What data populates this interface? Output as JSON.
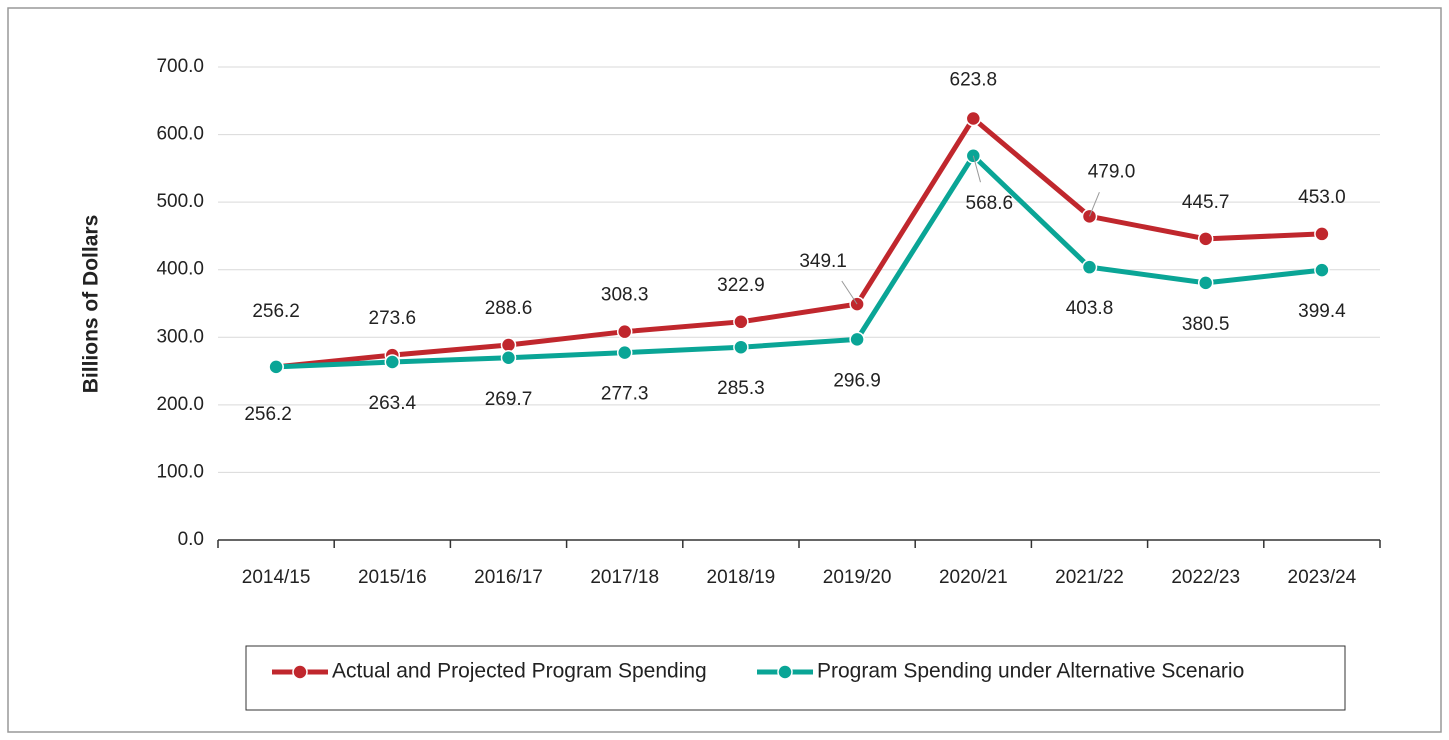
{
  "chart_data": {
    "type": "line",
    "y_label": "Billions of Dollars",
    "categories": [
      "2014/15",
      "2015/16",
      "2016/17",
      "2017/18",
      "2018/19",
      "2019/20",
      "2020/21",
      "2021/22",
      "2022/23",
      "2023/24"
    ],
    "series": [
      {
        "name": "Actual and Projected Program Spending",
        "color": "#c0272d",
        "values": [
          256.2,
          273.6,
          288.6,
          308.3,
          322.9,
          349.1,
          623.8,
          479.0,
          445.7,
          453.0
        ],
        "value_labels": [
          "256.2",
          "273.6",
          "288.6",
          "308.3",
          "322.9",
          "349.1",
          "623.8",
          "479.0",
          "445.7",
          "453.0"
        ]
      },
      {
        "name": "Program Spending under Alternative Scenario",
        "color": "#0aa596",
        "values": [
          256.2,
          263.4,
          269.7,
          277.3,
          285.3,
          296.9,
          568.6,
          403.8,
          380.5,
          399.4
        ],
        "value_labels": [
          "256.2",
          "263.4",
          "269.7",
          "277.3",
          "285.3",
          "296.9",
          "568.6",
          "403.8",
          "380.5",
          "399.4"
        ]
      }
    ],
    "ylim": [
      0,
      700
    ],
    "yticks": [
      {
        "value": 0,
        "label": "0.0"
      },
      {
        "value": 100,
        "label": "100.0"
      },
      {
        "value": 200,
        "label": "200.0"
      },
      {
        "value": 300,
        "label": "300.0"
      },
      {
        "value": 400,
        "label": "400.0"
      },
      {
        "value": 500,
        "label": "500.0"
      },
      {
        "value": 600,
        "label": "600.0"
      },
      {
        "value": 700,
        "label": "700.0"
      }
    ],
    "grid": true,
    "legend": "bottom"
  }
}
